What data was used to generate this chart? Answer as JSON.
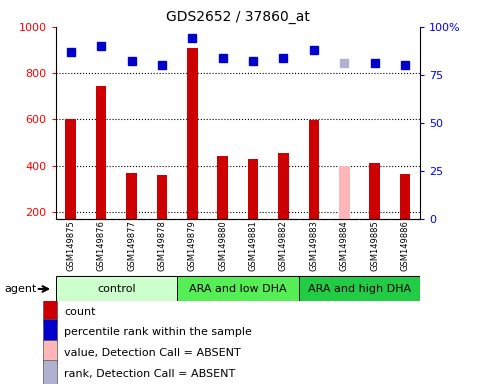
{
  "title": "GDS2652 / 37860_at",
  "samples": [
    "GSM149875",
    "GSM149876",
    "GSM149877",
    "GSM149878",
    "GSM149879",
    "GSM149880",
    "GSM149881",
    "GSM149882",
    "GSM149883",
    "GSM149884",
    "GSM149885",
    "GSM149886"
  ],
  "bar_values": [
    600,
    745,
    370,
    360,
    910,
    443,
    430,
    455,
    598,
    400,
    410,
    362
  ],
  "bar_colors": [
    "#cc0000",
    "#cc0000",
    "#cc0000",
    "#cc0000",
    "#cc0000",
    "#cc0000",
    "#cc0000",
    "#cc0000",
    "#cc0000",
    "#ffb6b6",
    "#cc0000",
    "#cc0000"
  ],
  "dot_values": [
    87,
    90,
    82,
    80,
    94,
    84,
    82,
    84,
    88,
    81,
    81,
    80
  ],
  "dot_colors": [
    "#0000cc",
    "#0000cc",
    "#0000cc",
    "#0000cc",
    "#0000cc",
    "#0000cc",
    "#0000cc",
    "#0000cc",
    "#0000cc",
    "#b0b0d0",
    "#0000cc",
    "#0000cc"
  ],
  "ylim_left": [
    170,
    1000
  ],
  "ylim_right": [
    0,
    100
  ],
  "yticks_left": [
    200,
    400,
    600,
    800,
    1000
  ],
  "yticks_right": [
    0,
    25,
    50,
    75,
    100
  ],
  "groups": [
    {
      "label": "control",
      "start": 0,
      "end": 3,
      "color": "#ccffcc"
    },
    {
      "label": "ARA and low DHA",
      "start": 4,
      "end": 7,
      "color": "#55ee55"
    },
    {
      "label": "ARA and high DHA",
      "start": 8,
      "end": 11,
      "color": "#22cc44"
    }
  ],
  "agent_label": "agent",
  "legend_items": [
    {
      "label": "count",
      "color": "#cc0000"
    },
    {
      "label": "percentile rank within the sample",
      "color": "#0000cc"
    },
    {
      "label": "value, Detection Call = ABSENT",
      "color": "#ffb6b6"
    },
    {
      "label": "rank, Detection Call = ABSENT",
      "color": "#b0b0d0"
    }
  ],
  "grid_lines": [
    200,
    400,
    600,
    800
  ],
  "bar_width": 0.35,
  "dot_size": 6,
  "background_color": "#ffffff",
  "title_fontsize": 10,
  "tick_fontsize": 8,
  "sample_fontsize": 6,
  "legend_fontsize": 8,
  "group_fontsize": 8
}
